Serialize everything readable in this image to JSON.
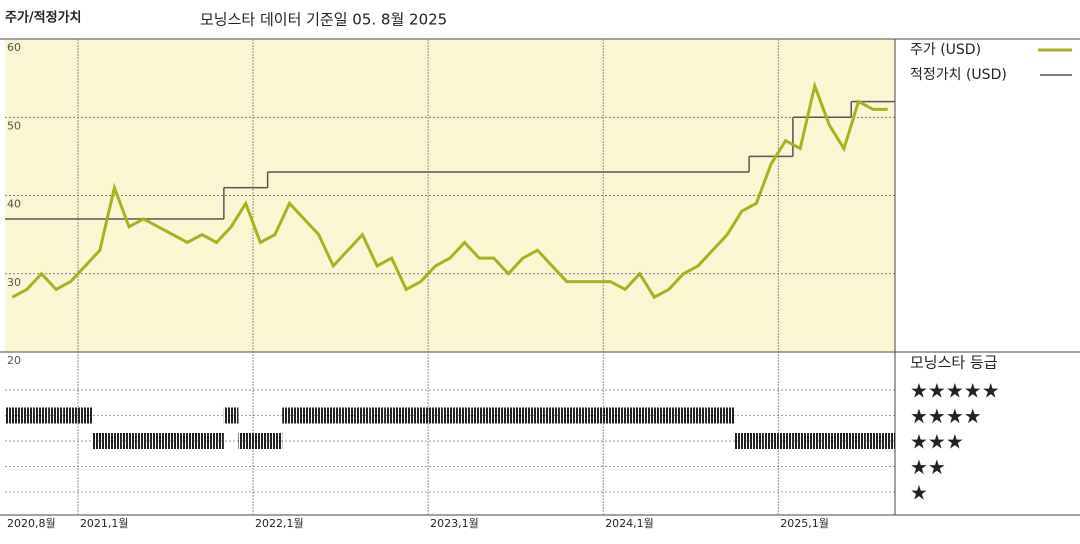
{
  "chart_data": {
    "type": "line",
    "title": "주가/적정가치",
    "subtitle": "모닝스타 데이터 기준일 05. 8월 2025",
    "x": [
      "2020-08",
      "2020-09",
      "2020-10",
      "2020-11",
      "2020-12",
      "2021-01",
      "2021-02",
      "2021-03",
      "2021-04",
      "2021-05",
      "2021-06",
      "2021-07",
      "2021-08",
      "2021-09",
      "2021-10",
      "2021-11",
      "2021-12",
      "2022-01",
      "2022-02",
      "2022-03",
      "2022-04",
      "2022-05",
      "2022-06",
      "2022-07",
      "2022-08",
      "2022-09",
      "2022-10",
      "2022-11",
      "2022-12",
      "2023-01",
      "2023-02",
      "2023-03",
      "2023-04",
      "2023-05",
      "2023-06",
      "2023-07",
      "2023-08",
      "2023-09",
      "2023-10",
      "2023-11",
      "2023-12",
      "2024-01",
      "2024-02",
      "2024-03",
      "2024-04",
      "2024-05",
      "2024-06",
      "2024-07",
      "2024-08",
      "2024-09",
      "2024-10",
      "2024-11",
      "2024-12",
      "2025-01",
      "2025-02",
      "2025-03",
      "2025-04",
      "2025-05",
      "2025-06",
      "2025-07",
      "2025-08"
    ],
    "series": [
      {
        "name": "주가 (USD)",
        "color": "#a9b11e",
        "style": "line",
        "values": [
          27,
          28,
          30,
          28,
          29,
          31,
          33,
          41,
          36,
          37,
          36,
          35,
          34,
          35,
          34,
          36,
          39,
          34,
          35,
          39,
          37,
          35,
          31,
          33,
          35,
          31,
          32,
          28,
          29,
          31,
          32,
          34,
          32,
          32,
          30,
          32,
          33,
          31,
          29,
          29,
          29,
          29,
          28,
          30,
          27,
          28,
          30,
          31,
          33,
          35,
          38,
          39,
          44,
          47,
          46,
          54,
          49,
          46,
          52,
          51,
          51
        ]
      },
      {
        "name": "적정가치 (USD)",
        "color": "#555555",
        "style": "step",
        "values": [
          37,
          37,
          37,
          37,
          37,
          37,
          37,
          37,
          37,
          37,
          37,
          37,
          37,
          37,
          37,
          41,
          41,
          41,
          43,
          43,
          43,
          43,
          43,
          43,
          43,
          43,
          43,
          43,
          43,
          43,
          43,
          43,
          43,
          43,
          43,
          43,
          43,
          43,
          43,
          43,
          43,
          43,
          43,
          43,
          43,
          43,
          43,
          43,
          43,
          43,
          43,
          45,
          45,
          45,
          50,
          50,
          50,
          50,
          52,
          52,
          52
        ]
      }
    ],
    "ratings": {
      "name": "모닝스타 등급",
      "levels": [
        "★★★★★",
        "★★★★",
        "★★★",
        "★★",
        "★"
      ],
      "level_values": [
        5,
        4,
        3,
        2,
        1
      ],
      "values": [
        4,
        4,
        4,
        4,
        4,
        4,
        3,
        3,
        3,
        3,
        3,
        3,
        3,
        3,
        3,
        4,
        3,
        3,
        3,
        4,
        4,
        4,
        4,
        4,
        4,
        4,
        4,
        4,
        4,
        4,
        4,
        4,
        4,
        4,
        4,
        4,
        4,
        4,
        4,
        4,
        4,
        4,
        4,
        4,
        4,
        4,
        4,
        4,
        4,
        4,
        3,
        3,
        3,
        3,
        3,
        3,
        3,
        3,
        3,
        3,
        3
      ]
    },
    "ylim": [
      20,
      60
    ],
    "yticks": [
      20,
      30,
      40,
      50,
      60
    ],
    "xticks": [
      {
        "value": "2020-08",
        "label": "2020,8월"
      },
      {
        "value": "2021-01",
        "label": "2021,1월"
      },
      {
        "value": "2022-01",
        "label": "2022,1월"
      },
      {
        "value": "2023-01",
        "label": "2023,1월"
      },
      {
        "value": "2024-01",
        "label": "2024,1월"
      },
      {
        "value": "2025-01",
        "label": "2025,1월"
      }
    ],
    "grid": true,
    "background": "#faf6d2"
  }
}
